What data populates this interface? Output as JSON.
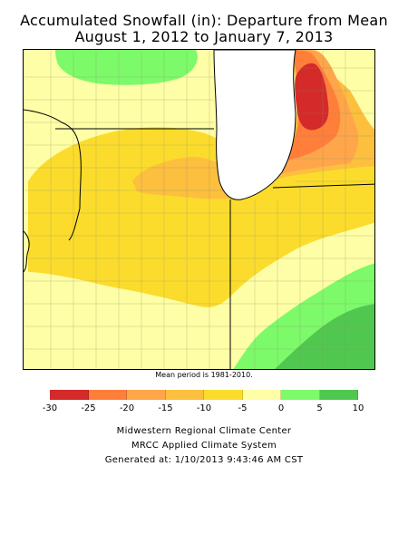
{
  "title_line1": "Accumulated Snowfall (in): Departure from Mean",
  "title_line2": "August 1, 2012 to January 7, 2013",
  "mean_period_note": "Mean period is 1981-2010.",
  "legend": {
    "ticks": [
      "-30",
      "-25",
      "-20",
      "-15",
      "-10",
      "-5",
      "0",
      "5",
      "10"
    ],
    "bins": [
      {
        "range": "-30 to -25",
        "color": "#d42a2a"
      },
      {
        "range": "-25 to -20",
        "color": "#ff7f3a"
      },
      {
        "range": "-20 to -15",
        "color": "#ffa64a"
      },
      {
        "range": "-15 to -10",
        "color": "#fcbf3e"
      },
      {
        "range": "-10 to -5",
        "color": "#fbdc2c"
      },
      {
        "range": "-5 to 0",
        "color": "#fefea6"
      },
      {
        "range": "0 to 5",
        "color": "#7dfa6a"
      },
      {
        "range": "5 to 10",
        "color": "#50c850"
      }
    ]
  },
  "credits": {
    "line1": "Midwestern Regional Climate Center",
    "line2": "MRCC Applied Climate System",
    "line3": "Generated at: 1/10/2013 9:43:46 AM CST"
  },
  "colors": {
    "background": "#ffffff",
    "lake": "#ffffff",
    "boundary": "#000000",
    "county_lines": "#8a8a6a"
  }
}
